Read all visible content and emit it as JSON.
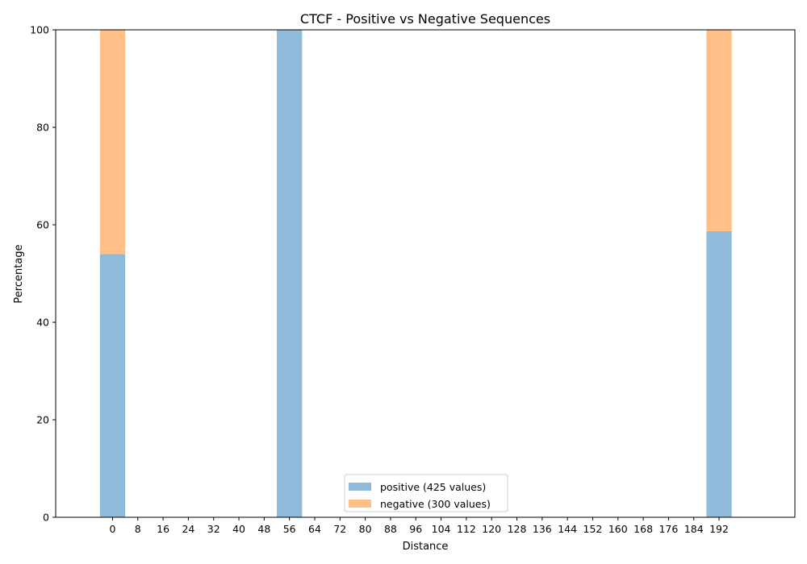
{
  "chart_data": {
    "type": "bar",
    "stacked": true,
    "normalized_percent": true,
    "title": "CTCF - Positive vs Negative Sequences",
    "xlabel": "Distance",
    "ylabel": "Percentage",
    "ylim": [
      0,
      100
    ],
    "xlim": [
      -18,
      216
    ],
    "bar_width": 8,
    "x": [
      0,
      56,
      192
    ],
    "x_ticks": [
      0,
      8,
      16,
      24,
      32,
      40,
      48,
      56,
      64,
      72,
      80,
      88,
      96,
      104,
      112,
      120,
      128,
      136,
      144,
      152,
      160,
      168,
      176,
      184,
      192
    ],
    "y_ticks": [
      0,
      20,
      40,
      60,
      80,
      100
    ],
    "series": [
      {
        "name": "positive (425 values)",
        "color": "#8fbad9",
        "values": [
          54,
          100,
          58.7
        ]
      },
      {
        "name": "negative (300 values)",
        "color": "#ffbf87",
        "values": [
          46,
          0,
          41.3
        ]
      }
    ],
    "legend_position": "lower center",
    "grid": false
  }
}
